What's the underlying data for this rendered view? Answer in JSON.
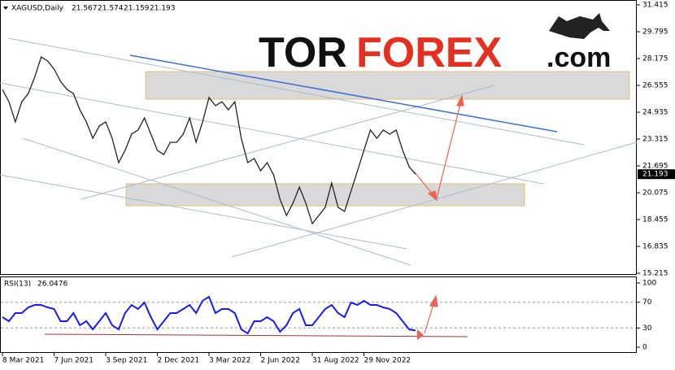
{
  "chart_data": [
    {
      "type": "line",
      "symbol": "XAGUSD,Daily",
      "ohlc": [
        21.567,
        21.574,
        21.159,
        21.193
      ],
      "logo": {
        "part1": "TOR",
        "part2": "FOREX",
        "part3": ".com"
      },
      "categories": [
        "8 Mar 2021",
        null,
        null,
        null,
        null,
        null,
        null,
        null,
        "7 Jun 2021",
        null,
        null,
        null,
        null,
        null,
        null,
        null,
        "3 Sep 2021",
        null,
        null,
        null,
        null,
        null,
        null,
        null,
        "2 Dec 2021",
        null,
        null,
        null,
        null,
        null,
        null,
        null,
        "3 Mar 2022",
        null,
        null,
        null,
        null,
        null,
        null,
        null,
        "2 Jun 2022",
        null,
        null,
        null,
        null,
        null,
        null,
        null,
        "31 Aug 2022",
        null,
        null,
        null,
        null,
        null,
        null,
        null,
        "29 Nov 2022",
        null,
        null,
        null,
        null,
        null,
        null,
        null,
        null
      ],
      "series": [
        {
          "name": "XAGUSD",
          "color": "#222222",
          "values": [
            26.31,
            25.57,
            24.35,
            25.57,
            26.06,
            27.05,
            28.27,
            28.03,
            27.54,
            26.8,
            26.31,
            26.06,
            25.08,
            24.35,
            23.36,
            24.1,
            24.35,
            23.36,
            21.89,
            22.63,
            23.61,
            23.86,
            24.59,
            23.61,
            22.63,
            22.38,
            23.12,
            23.12,
            23.61,
            24.59,
            23.12,
            24.35,
            25.82,
            25.33,
            25.57,
            25.08,
            25.57,
            23.36,
            21.89,
            22.14,
            21.4,
            21.89,
            21.16,
            19.68,
            18.7,
            19.44,
            20.42,
            19.44,
            18.21,
            18.7,
            19.19,
            20.66,
            19.19,
            18.95,
            20.17,
            21.4,
            22.63,
            23.86,
            23.36,
            23.86,
            23.61,
            23.86,
            22.63,
            21.65,
            21.193
          ]
        }
      ],
      "ylim": [
        15.215,
        31.415
      ],
      "yticks": [
        31.415,
        29.795,
        28.175,
        26.555,
        24.935,
        23.315,
        21.695,
        20.075,
        18.455,
        16.835,
        15.215
      ]
    },
    {
      "type": "line",
      "title": "RSI(13)",
      "series": [
        {
          "name": "RSI",
          "color": "#1a1aff",
          "values": [
            46.8,
            40.5,
            53.2,
            53.2,
            62.0,
            65.8,
            65.8,
            62.0,
            59.5,
            40.5,
            40.5,
            53.2,
            34.2,
            40.5,
            27.8,
            40.5,
            53.2,
            34.2,
            27.8,
            53.2,
            65.8,
            59.5,
            69.6,
            46.8,
            27.8,
            40.5,
            53.2,
            53.2,
            59.5,
            65.8,
            53.2,
            72.2,
            78.5,
            53.2,
            59.5,
            59.5,
            53.2,
            27.8,
            21.5,
            40.5,
            40.5,
            46.8,
            40.5,
            24.1,
            34.2,
            53.2,
            59.5,
            34.2,
            34.2,
            46.8,
            59.5,
            65.8,
            53.2,
            46.8,
            69.6,
            65.8,
            72.2,
            65.8,
            65.8,
            62.0,
            59.5,
            53.2,
            40.5,
            27.8,
            26.0476
          ]
        }
      ],
      "ylim": [
        0,
        100
      ],
      "yticks": [
        100,
        70,
        30,
        0
      ]
    }
  ]
}
